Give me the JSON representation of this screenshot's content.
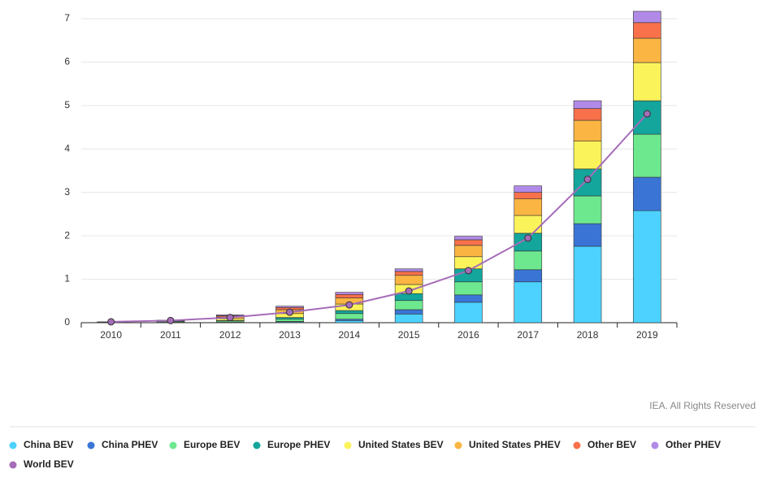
{
  "chart_data": {
    "type": "bar",
    "stacked": true,
    "categories": [
      "2010",
      "2011",
      "2012",
      "2013",
      "2014",
      "2015",
      "2016",
      "2017",
      "2018",
      "2019"
    ],
    "series": [
      {
        "name": "China BEV",
        "color": "#4dd2ff",
        "values": [
          0,
          0.01,
          0.01,
          0.02,
          0.05,
          0.2,
          0.47,
          0.94,
          1.76,
          2.58
        ]
      },
      {
        "name": "China PHEV",
        "color": "#3a75d6",
        "values": [
          0,
          0,
          0,
          0.01,
          0.03,
          0.1,
          0.17,
          0.28,
          0.52,
          0.77
        ]
      },
      {
        "name": "Europe BEV",
        "color": "#6de88f",
        "values": [
          0.01,
          0.02,
          0.03,
          0.05,
          0.13,
          0.21,
          0.3,
          0.43,
          0.64,
          0.99
        ]
      },
      {
        "name": "Europe PHEV",
        "color": "#14a59c",
        "values": [
          0,
          0,
          0.01,
          0.04,
          0.07,
          0.16,
          0.3,
          0.41,
          0.62,
          0.77
        ]
      },
      {
        "name": "United States BEV",
        "color": "#fbf35a",
        "values": [
          0,
          0.01,
          0.04,
          0.09,
          0.15,
          0.21,
          0.28,
          0.41,
          0.64,
          0.88
        ]
      },
      {
        "name": "United States PHEV",
        "color": "#fbb543",
        "values": [
          0,
          0.01,
          0.04,
          0.09,
          0.14,
          0.21,
          0.26,
          0.38,
          0.48,
          0.56
        ]
      },
      {
        "name": "Other BEV",
        "color": "#f8714a",
        "values": [
          0.01,
          0.01,
          0.03,
          0.05,
          0.08,
          0.09,
          0.13,
          0.15,
          0.27,
          0.36
        ]
      },
      {
        "name": "Other PHEV",
        "color": "#b18ae8",
        "values": [
          0,
          0,
          0.02,
          0.03,
          0.05,
          0.06,
          0.08,
          0.15,
          0.18,
          0.26
        ]
      },
      {
        "name": "World BEV",
        "color": "#a56cb8",
        "type": "line",
        "values": [
          0.02,
          0.05,
          0.12,
          0.24,
          0.41,
          0.73,
          1.2,
          1.95,
          3.3,
          4.81
        ]
      }
    ],
    "ylim": [
      0,
      7
    ],
    "yticks": [
      0,
      1,
      2,
      3,
      4,
      5,
      6,
      7
    ],
    "grid": true,
    "credit": "IEA. All Rights Reserved"
  }
}
